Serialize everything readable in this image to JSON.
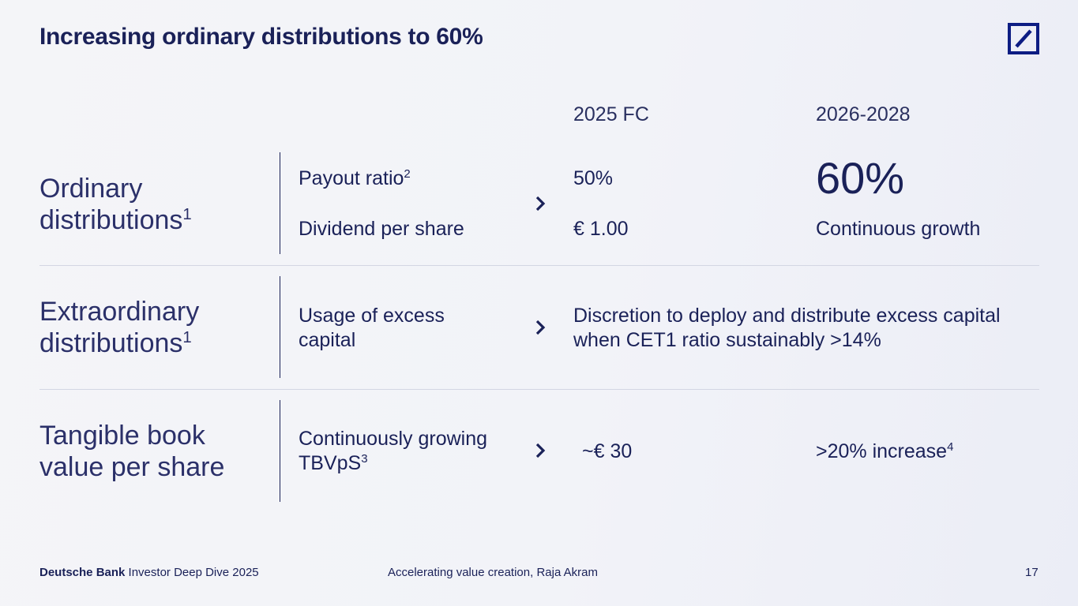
{
  "title": "Increasing ordinary distributions to 60%",
  "logo": {
    "icon": "deutsche-bank-slash-logo",
    "color": "#0d1d83"
  },
  "columns": {
    "col_2025": "2025 FC",
    "col_2026": "2026-2028"
  },
  "rows": {
    "ordinary": {
      "label_line1": "Ordinary",
      "label_line2": "distributions",
      "label_sup": "1",
      "metric1": "Payout ratio",
      "metric1_sup": "2",
      "metric2": "Dividend per share",
      "value1_2025": "50%",
      "value2_2025": "€ 1.00",
      "value1_2026": "60%",
      "value2_2026": "Continuous growth"
    },
    "extraordinary": {
      "label_line1": "Extraordinary",
      "label_line2": "distributions",
      "label_sup": "1",
      "metric_line1": "Usage of excess",
      "metric_line2": "capital",
      "value_line1": "Discretion to deploy and distribute excess capital",
      "value_line2": "when CET1 ratio sustainably >14%"
    },
    "tbvps": {
      "label_line1": "Tangible book",
      "label_line2": "value per share",
      "metric_line1": "Continuously growing",
      "metric_line2": "TBVpS",
      "metric_sup": "3",
      "value_2025": "~€ 30",
      "value_2026": ">20% increase",
      "value_2026_sup": "4"
    }
  },
  "footer": {
    "brand": "Deutsche Bank",
    "event": "Investor Deep Dive 2025",
    "subtitle": "Accelerating value creation, Raja Akram",
    "page_number": "17"
  }
}
